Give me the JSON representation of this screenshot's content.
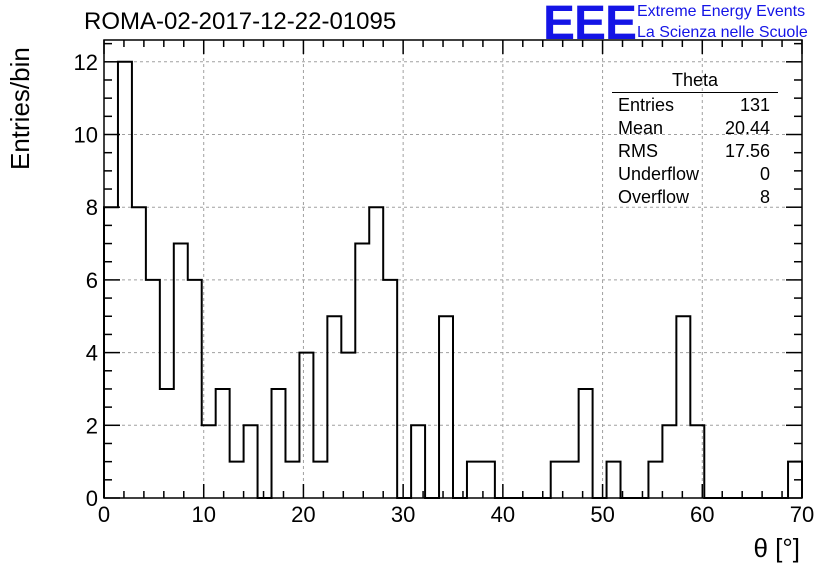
{
  "header": {
    "run_title": "ROMA-02-2017-12-22-01095",
    "logo_text": "EEE",
    "logo_line1": "Extreme Energy Events",
    "logo_line2": "La Scienza nelle Scuole"
  },
  "colors": {
    "logo": "#1414e6",
    "histogram": "#000000",
    "grid": "#a0a0a0"
  },
  "stats": {
    "title": "Theta",
    "rows": [
      {
        "label": "Entries",
        "value": "131"
      },
      {
        "label": "Mean",
        "value": "20.44"
      },
      {
        "label": "RMS",
        "value": "17.56"
      },
      {
        "label": "Underflow",
        "value": "0"
      },
      {
        "label": "Overflow",
        "value": "8"
      }
    ]
  },
  "chart_data": {
    "type": "bar",
    "style": "step-histogram",
    "title": "ROMA-02-2017-12-22-01095",
    "xlabel": "θ [°]",
    "ylabel": "Entries/bin",
    "xlim": [
      0,
      70
    ],
    "ylim": [
      0,
      12.6
    ],
    "bin_width": 1.4,
    "grid": true,
    "x_ticks": [
      0,
      10,
      20,
      30,
      40,
      50,
      60,
      70
    ],
    "y_ticks": [
      0,
      2,
      4,
      6,
      8,
      10,
      12
    ],
    "series": [
      {
        "values": [
          8,
          12,
          8,
          6,
          3,
          7,
          6,
          2,
          3,
          1,
          2,
          0,
          3,
          1,
          4,
          1,
          5,
          4,
          7,
          8,
          6,
          0,
          2,
          0,
          5,
          0,
          1,
          1,
          0,
          0,
          0,
          0,
          1,
          1,
          3,
          0,
          1,
          0,
          0,
          1,
          2,
          5,
          2,
          0,
          0,
          0,
          0,
          0,
          0,
          1
        ]
      }
    ]
  }
}
